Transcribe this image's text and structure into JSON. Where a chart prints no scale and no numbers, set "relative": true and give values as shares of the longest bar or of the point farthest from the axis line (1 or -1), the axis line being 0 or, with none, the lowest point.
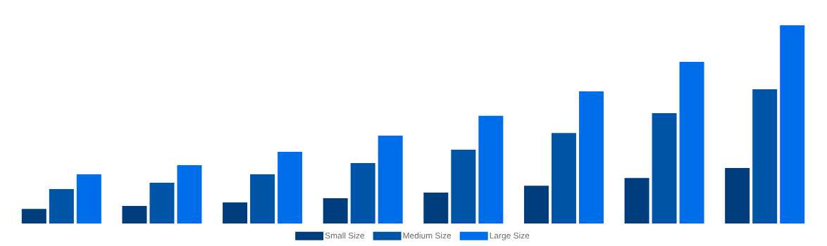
{
  "chart_data": {
    "type": "bar",
    "relative": true,
    "legend": "bottom",
    "categories": [
      null,
      null,
      null,
      null,
      null,
      null,
      null,
      null
    ],
    "series": [
      {
        "name": "Small Size",
        "color": "#003d7c",
        "values": [
          0.074,
          0.089,
          0.106,
          0.128,
          0.156,
          0.191,
          0.23,
          0.28
        ]
      },
      {
        "name": "Medium Size",
        "color": "#0055a8",
        "values": [
          0.174,
          0.206,
          0.248,
          0.305,
          0.372,
          0.457,
          0.557,
          0.677
        ]
      },
      {
        "name": "Large Size",
        "color": "#006eeb",
        "values": [
          0.248,
          0.294,
          0.362,
          0.443,
          0.543,
          0.667,
          0.816,
          1
        ]
      }
    ]
  }
}
